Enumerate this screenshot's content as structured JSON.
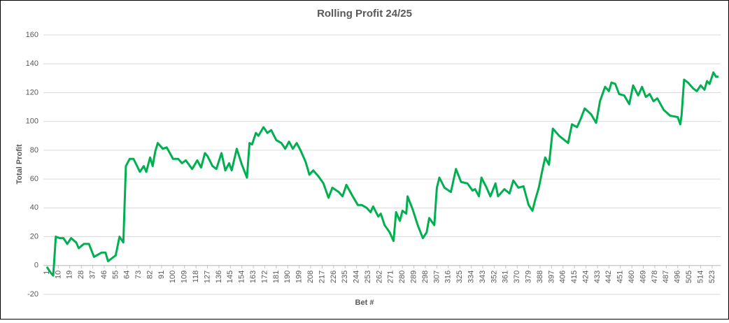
{
  "chart_data": {
    "type": "line",
    "title": "Rolling Profit 24/25",
    "x_label": "Bet #",
    "y_label": "Total Profit",
    "x": [
      1,
      4,
      6,
      8,
      11,
      14,
      17,
      20,
      24,
      26,
      30,
      34,
      38,
      44,
      47,
      49,
      52,
      55,
      58,
      61,
      63,
      66,
      69,
      74,
      77,
      79,
      82,
      84,
      86,
      88,
      92,
      95,
      100,
      104,
      107,
      110,
      115,
      119,
      122,
      125,
      127,
      131,
      134,
      138,
      141,
      144,
      146,
      150,
      154,
      158,
      160,
      162,
      165,
      167,
      171,
      174,
      177,
      181,
      185,
      188,
      191,
      194,
      197,
      200,
      204,
      207,
      210,
      214,
      218,
      222,
      225,
      230,
      233,
      236,
      241,
      245,
      248,
      252,
      255,
      257,
      261,
      263,
      266,
      270,
      273,
      275,
      278,
      280,
      283,
      284,
      288,
      292,
      296,
      299,
      301,
      305,
      307,
      309,
      313,
      318,
      322,
      326,
      331,
      335,
      337,
      340,
      342,
      346,
      349,
      353,
      355,
      360,
      364,
      367,
      371,
      375,
      379,
      382,
      384,
      387,
      390,
      392,
      395,
      398,
      403,
      410,
      413,
      417,
      420,
      423,
      428,
      432,
      435,
      439,
      442,
      444,
      447,
      450,
      454,
      458,
      461,
      465,
      468,
      471,
      474,
      477,
      480,
      485,
      490,
      496,
      498,
      499,
      501,
      504,
      508,
      511,
      514,
      517,
      519,
      521,
      524,
      526,
      528
    ],
    "series": [
      {
        "name": "Total Profit",
        "color": "#00b050",
        "values": [
          -1,
          -5,
          -7,
          20,
          19,
          19,
          15,
          19,
          16,
          12,
          15,
          15,
          6,
          9,
          9,
          3,
          5,
          7,
          20,
          16,
          69,
          74,
          74,
          65,
          69,
          65,
          75,
          69,
          79,
          85,
          81,
          82,
          74,
          74,
          71,
          73,
          67,
          73,
          68,
          78,
          76,
          69,
          67,
          78,
          66,
          71,
          66,
          81,
          70,
          61,
          85,
          84,
          92,
          90,
          96,
          92,
          94,
          87,
          85,
          81,
          86,
          81,
          85,
          80,
          72,
          63,
          66,
          62,
          57,
          47,
          54,
          51,
          48,
          56,
          48,
          42,
          42,
          40,
          37,
          41,
          34,
          36,
          28,
          23,
          17,
          37,
          31,
          38,
          36,
          48,
          39,
          28,
          19,
          23,
          33,
          28,
          54,
          61,
          54,
          51,
          67,
          58,
          57,
          52,
          53,
          48,
          61,
          54,
          48,
          57,
          48,
          53,
          50,
          59,
          54,
          55,
          42,
          38,
          45,
          54,
          67,
          75,
          70,
          95,
          90,
          85,
          98,
          96,
          102,
          109,
          105,
          99,
          114,
          124,
          121,
          127,
          126,
          119,
          118,
          112,
          125,
          118,
          124,
          117,
          119,
          114,
          116,
          108,
          104,
          103,
          98,
          104,
          129,
          127,
          123,
          121,
          125,
          122,
          128,
          126,
          134,
          131,
          131
        ]
      }
    ],
    "xlim": [
      1,
      528
    ],
    "xticks": [
      1,
      10,
      19,
      28,
      37,
      46,
      55,
      64,
      73,
      82,
      91,
      100,
      109,
      118,
      127,
      136,
      145,
      154,
      163,
      172,
      181,
      190,
      199,
      208,
      217,
      226,
      235,
      244,
      253,
      262,
      271,
      280,
      289,
      298,
      307,
      316,
      325,
      334,
      343,
      352,
      361,
      370,
      379,
      388,
      397,
      406,
      415,
      424,
      433,
      442,
      451,
      460,
      469,
      478,
      487,
      496,
      505,
      514,
      523
    ],
    "ylim": [
      -20,
      160
    ],
    "yticks": [
      -20,
      0,
      20,
      40,
      60,
      80,
      100,
      120,
      140,
      160
    ],
    "grid": true
  }
}
